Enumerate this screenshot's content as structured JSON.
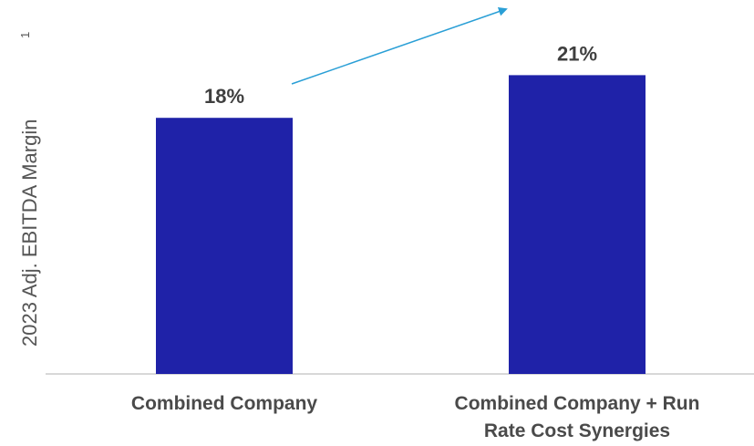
{
  "chart_data": {
    "type": "bar",
    "title": "",
    "xlabel": "",
    "ylabel": "2023 Adj. EBITDA Margin",
    "ylabel_superscript": "1",
    "categories": [
      [
        "Combined Company"
      ],
      [
        "Combined Company + Run",
        "Rate Cost Synergies"
      ]
    ],
    "values": [
      18,
      21
    ],
    "value_labels": [
      "18%",
      "21%"
    ],
    "ylim": [
      0,
      25
    ],
    "grid": false,
    "legend": "none",
    "annotation": "arrow from first bar label to second bar label",
    "colors": {
      "bar": "#1f22a8",
      "axis": "#cccccc",
      "arrow": "#2a9fd6",
      "text": "#4a4a4a"
    }
  }
}
